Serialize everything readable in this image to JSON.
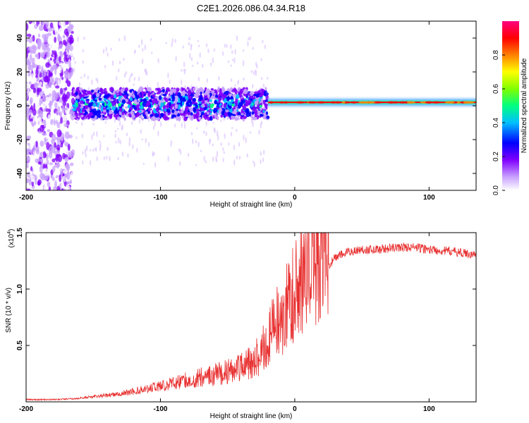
{
  "figure_title": "C2E1.2026.086.04.34.R18",
  "chart_data": [
    {
      "type": "heatmap",
      "title": "C2E1.2026.086.04.34.R18",
      "xlabel": "Height of straight line (km)",
      "ylabel": "Frequency (Hz)",
      "xlim": [
        -200,
        135
      ],
      "ylim": [
        -50,
        50
      ],
      "x_ticks": [
        -200,
        -100,
        0,
        100
      ],
      "y_ticks": [
        -40,
        -20,
        0,
        20,
        40
      ],
      "colorbar": {
        "label": "Normalized spectral amplitude",
        "range": [
          0.0,
          1.0
        ],
        "ticks": [
          0.0,
          0.2,
          0.4,
          0.6,
          0.8
        ],
        "colors": [
          "#ffffff",
          "#c8a0ff",
          "#8000ff",
          "#0000ff",
          "#00c0ff",
          "#00ff80",
          "#80ff00",
          "#ffff00",
          "#ff8000",
          "#ff0000",
          "#ff0080"
        ]
      },
      "regions": [
        {
          "name": "scattered noise",
          "x_range": [
            -200,
            -165
          ],
          "y_range": [
            -50,
            50
          ],
          "amplitude": 0.15
        },
        {
          "name": "broad band",
          "x_range": [
            -165,
            -20
          ],
          "y_range": [
            -8,
            10
          ],
          "amplitude": 0.4
        },
        {
          "name": "narrow line",
          "x_range": [
            -20,
            135
          ],
          "center_hz": 2,
          "y_range": [
            0,
            4
          ],
          "amplitude": 0.9
        }
      ]
    },
    {
      "type": "line",
      "xlabel": "Height of straight line (km)",
      "ylabel": "SNR (10 * v/v)",
      "y_multiplier": "(x10",
      "y_multiplier_exp": "4",
      "y_multiplier_close": ")",
      "xlim": [
        -200,
        135
      ],
      "ylim": [
        0,
        1.5
      ],
      "x_ticks": [
        -200,
        -100,
        0,
        100
      ],
      "y_ticks": [
        0.5,
        1.0,
        1.5
      ],
      "y_tick_labels": [
        "0.5",
        "1.0",
        "1.5"
      ],
      "series": [
        {
          "name": "SNR",
          "color": "#e83030",
          "x": [
            -200,
            -180,
            -160,
            -150,
            -140,
            -130,
            -120,
            -110,
            -100,
            -90,
            -80,
            -70,
            -60,
            -50,
            -40,
            -30,
            -25,
            -20,
            -15,
            -10,
            -5,
            0,
            5,
            10,
            15,
            20,
            25,
            30,
            40,
            50,
            60,
            70,
            80,
            90,
            100,
            110,
            120,
            130,
            135
          ],
          "values": [
            0.02,
            0.02,
            0.03,
            0.04,
            0.05,
            0.06,
            0.08,
            0.1,
            0.12,
            0.14,
            0.16,
            0.18,
            0.2,
            0.22,
            0.25,
            0.3,
            0.35,
            0.45,
            0.55,
            0.6,
            0.7,
            0.8,
            0.85,
            0.9,
            1.0,
            1.1,
            1.2,
            1.28,
            1.33,
            1.35,
            1.35,
            1.36,
            1.37,
            1.37,
            1.35,
            1.34,
            1.33,
            1.31,
            1.3
          ]
        }
      ]
    }
  ]
}
